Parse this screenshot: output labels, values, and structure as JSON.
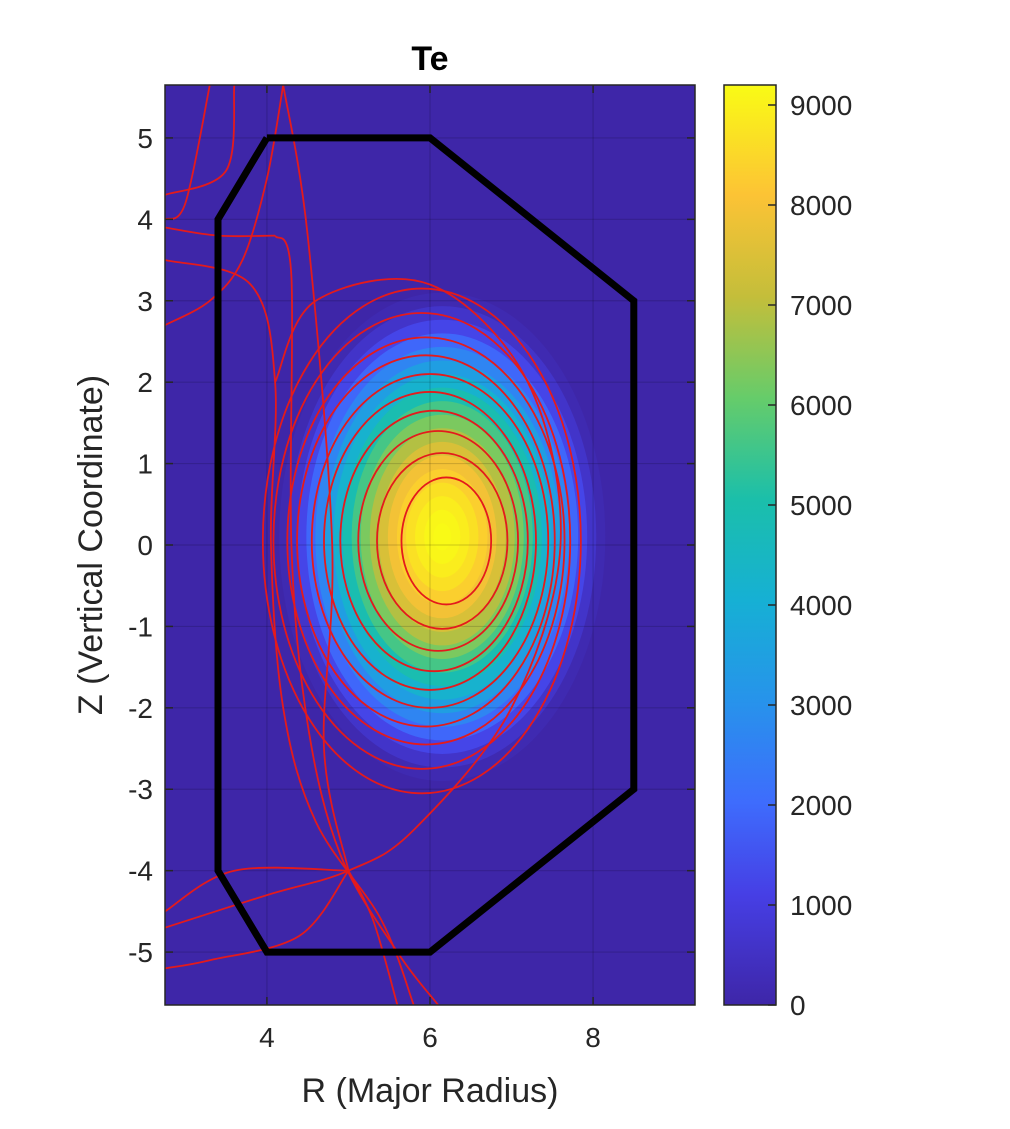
{
  "chart_data": {
    "type": "heatmap",
    "title": "Te",
    "xlabel": "R (Major Radius)",
    "ylabel": "Z (Vertical Coordinate)",
    "xlim": [
      2.75,
      9.25
    ],
    "ylim": [
      -5.65,
      5.65
    ],
    "xticks": [
      4,
      6,
      8
    ],
    "yticks": [
      -5,
      -4,
      -3,
      -2,
      -1,
      0,
      1,
      2,
      3,
      4,
      5
    ],
    "grid": true,
    "colormap": "parula",
    "colorbar": {
      "clim": [
        0,
        9200
      ],
      "ticks": [
        0,
        1000,
        2000,
        3000,
        4000,
        5000,
        6000,
        7000,
        8000,
        9000
      ]
    },
    "peak": {
      "r": 6.15,
      "z": 0.1,
      "value": 9200
    },
    "profile": {
      "edge_r_half_width": 2.0,
      "edge_z_half_height": 3.0,
      "levels": 18
    },
    "wall_outline": {
      "color": "#000000",
      "points": [
        [
          4,
          5
        ],
        [
          6,
          5
        ],
        [
          8.5,
          3
        ],
        [
          8.5,
          -3
        ],
        [
          6,
          -5
        ],
        [
          4,
          -5
        ],
        [
          3.4,
          -4
        ],
        [
          3.4,
          4
        ],
        [
          4,
          5
        ]
      ]
    },
    "flux_surfaces": {
      "color": "#e41a1c",
      "closed": [
        {
          "r": 6.2,
          "z": 0.05,
          "a": 0.55,
          "b": 0.78
        },
        {
          "r": 6.15,
          "z": 0.05,
          "a": 0.8,
          "b": 1.08
        },
        {
          "r": 6.1,
          "z": 0.05,
          "a": 0.98,
          "b": 1.35
        },
        {
          "r": 6.05,
          "z": 0.05,
          "a": 1.15,
          "b": 1.6
        },
        {
          "r": 6.0,
          "z": 0.05,
          "a": 1.3,
          "b": 1.83
        },
        {
          "r": 6.0,
          "z": 0.05,
          "a": 1.45,
          "b": 2.05
        },
        {
          "r": 5.95,
          "z": 0.05,
          "a": 1.58,
          "b": 2.28
        },
        {
          "r": 5.95,
          "z": 0.05,
          "a": 1.7,
          "b": 2.5
        },
        {
          "r": 5.9,
          "z": 0.05,
          "a": 1.82,
          "b": 2.8
        },
        {
          "r": 5.9,
          "z": 0.05,
          "a": 1.95,
          "b": 3.1
        }
      ],
      "open": [
        [
          [
            4.2,
            5.65
          ],
          [
            4.0,
            4.5
          ],
          [
            3.7,
            3.5
          ],
          [
            3.3,
            3.0
          ],
          [
            2.75,
            2.7
          ]
        ],
        [
          [
            4.1,
            3.8
          ],
          [
            3.4,
            3.8
          ],
          [
            2.75,
            3.9
          ]
        ],
        [
          [
            3.3,
            5.65
          ],
          [
            3.0,
            4.2
          ],
          [
            2.75,
            4.0
          ]
        ],
        [
          [
            3.6,
            5.65
          ],
          [
            3.5,
            4.6
          ],
          [
            2.75,
            4.3
          ]
        ],
        [
          [
            2.75,
            3.5
          ],
          [
            3.8,
            3.2
          ],
          [
            4.1,
            2.0
          ],
          [
            4.05,
            0.0
          ],
          [
            4.2,
            -2.0
          ],
          [
            4.6,
            -3.4
          ],
          [
            5.4,
            -4.6
          ],
          [
            5.8,
            -5.65
          ]
        ],
        [
          [
            4.1,
            3.8
          ],
          [
            4.3,
            3.3
          ],
          [
            4.3,
            0.0
          ],
          [
            4.5,
            -2.2
          ],
          [
            4.9,
            -3.8
          ],
          [
            5.6,
            -5.0
          ],
          [
            6.1,
            -5.65
          ]
        ],
        [
          [
            4.2,
            5.65
          ],
          [
            4.5,
            3.8
          ],
          [
            4.8,
            0.0
          ],
          [
            4.7,
            -2.5
          ],
          [
            5.0,
            -4.0
          ]
        ],
        [
          [
            2.75,
            -4.7
          ],
          [
            4.0,
            -4.3
          ],
          [
            5.0,
            -4.0
          ],
          [
            5.8,
            -3.5
          ],
          [
            7.0,
            -2.0
          ],
          [
            7.6,
            0.0
          ],
          [
            7.2,
            2.0
          ],
          [
            6.0,
            3.2
          ],
          [
            4.6,
            3.0
          ],
          [
            4.1,
            2.0
          ]
        ],
        [
          [
            2.75,
            -4.5
          ],
          [
            3.6,
            -4.0
          ],
          [
            5.0,
            -4.0
          ]
        ],
        [
          [
            5.0,
            -4.0
          ],
          [
            4.4,
            -4.8
          ],
          [
            3.3,
            -5.1
          ],
          [
            2.75,
            -5.2
          ]
        ],
        [
          [
            5.0,
            -4.0
          ],
          [
            5.3,
            -4.6
          ],
          [
            5.6,
            -5.65
          ]
        ]
      ]
    }
  }
}
